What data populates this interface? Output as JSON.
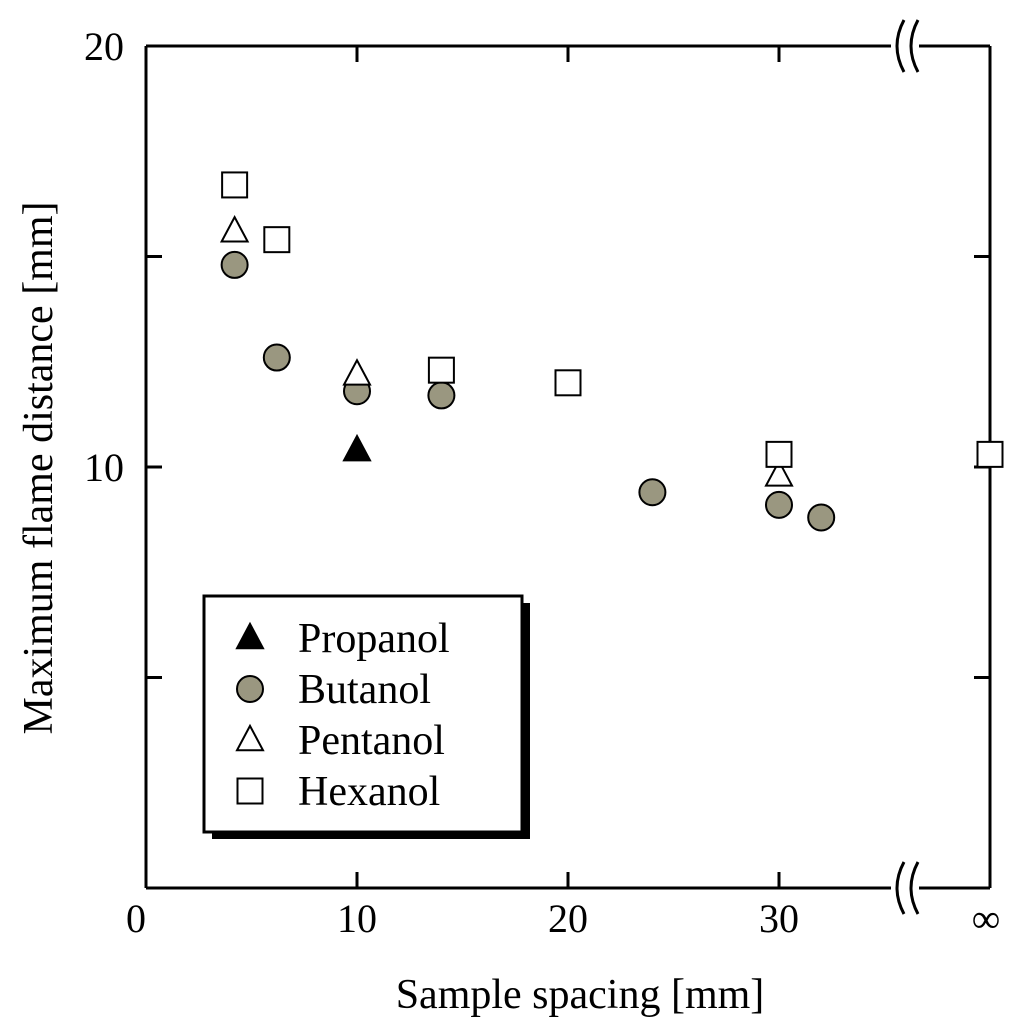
{
  "chart_data": {
    "type": "scatter",
    "title": "",
    "xlabel": "Sample spacing  [mm]",
    "ylabel": "Maximum flame distance  [mm]",
    "xlim": [
      0,
      40
    ],
    "ylim": [
      0,
      20
    ],
    "x_ticks": [
      0,
      10,
      20,
      30
    ],
    "x_tick_labels": [
      "0",
      "10",
      "20",
      "30"
    ],
    "x_infinity_label": "∞",
    "y_ticks": [
      0,
      5,
      10,
      15,
      20
    ],
    "y_tick_labels": [
      "",
      "",
      "10",
      "",
      "20"
    ],
    "axis_break": true,
    "grid": false,
    "legend_position": "bottom-left",
    "series": [
      {
        "name": "Propanol",
        "marker": "filled-triangle",
        "color": "#000000",
        "points": [
          [
            10,
            10.4
          ]
        ]
      },
      {
        "name": "Butanol",
        "marker": "filled-circle",
        "color": "#9a9780",
        "points": [
          [
            4.2,
            14.8
          ],
          [
            6.2,
            12.6
          ],
          [
            10,
            11.8
          ],
          [
            14,
            11.7
          ],
          [
            24,
            9.4
          ],
          [
            30,
            9.1
          ],
          [
            32,
            8.8
          ]
        ]
      },
      {
        "name": "Pentanol",
        "marker": "open-triangle",
        "color": "#ffffff",
        "points": [
          [
            4.2,
            15.6
          ],
          [
            10,
            12.2
          ],
          [
            30,
            9.8
          ]
        ]
      },
      {
        "name": "Hexanol",
        "marker": "open-square",
        "color": "#ffffff",
        "points": [
          [
            4.2,
            16.7
          ],
          [
            6.2,
            15.4
          ],
          [
            14,
            12.3
          ],
          [
            20,
            12.0
          ],
          [
            30,
            10.3
          ],
          [
            "∞",
            10.3
          ]
        ]
      }
    ]
  }
}
